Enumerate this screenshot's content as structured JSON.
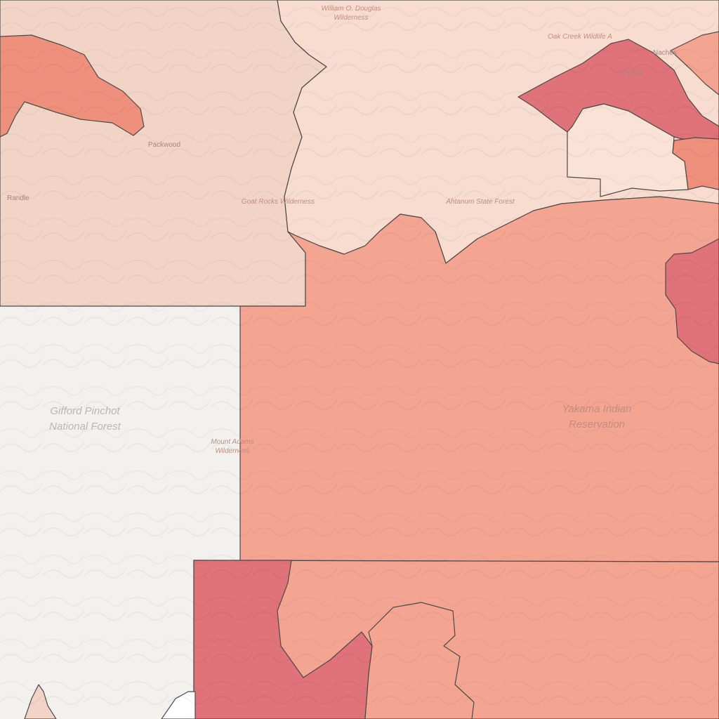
{
  "map": {
    "colors": {
      "background": "#f2f1ee",
      "tier_light": "#f1d4c6",
      "tier_pale": "#f8dccf",
      "tier_mid": "#f4a592",
      "tier_medium": "#ef907c",
      "tier_dark": "#e0727a",
      "boundary": "#4a4a4a"
    },
    "labels": {
      "gifford_pinchot_l1": "Gifford Pinchot",
      "gifford_pinchot_l2": "National Forest",
      "yakama_l1": "Yakama Indian",
      "yakama_l2": "Reservation",
      "mount_adams_l1": "Mount Adams",
      "mount_adams_l2": "Wilderness",
      "douglas_l1": "William O. Douglas",
      "douglas_l2": "Wilderness",
      "oak_creek": "Oak Creek Wildlife A",
      "goat_rocks": "Goat Rocks Wilderness",
      "ahtanum": "Ahtanum State Forest",
      "packwood": "Packwood",
      "tieton": "Tieton",
      "randle": "Randle",
      "naches_partial": "Naches"
    }
  }
}
